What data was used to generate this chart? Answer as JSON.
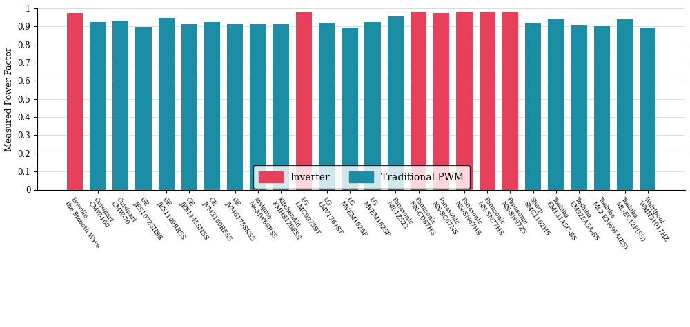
{
  "labels": [
    "Breville\nthe Smooth Wave",
    "Cuisinart\nCMW-100",
    "Cuisinart\nCMW-70",
    "GE\nJES1072SHSS",
    "GE\nJES1109RRSS",
    "GE\nJES1145SHSS",
    "GE\nJVM3160RFSS",
    "GE\nJVM6175SKSS",
    "Insignia\nNs-MW69BSS",
    "KitchenAid\nKMHS120ESS",
    "LG\nLMC0975ST",
    "LG\nLMV1764ST",
    "LG\nMVEM1825F",
    "LG\nMVEM1825F",
    "Panasonic\nNE-1Z523",
    "Panasonic\nNN-CD87HS",
    "Panasonic\nNN-SC67NS",
    "Panasonic\nNN-SN67HS",
    "Panasonic\nNN-SN77HS",
    "Panasonic\nNN-SN97ZS",
    "Sharp\nSMC1162HS",
    "Toshiba\nEM131A5C-BS",
    "Toshiba\nEM925A5A-BS",
    "Toshiba\nML2-EM69PA(BS)",
    "Toshiba\nML-EC12P(SS)",
    "Whirlpool\nWMH31017HZ"
  ],
  "values": [
    0.975,
    0.925,
    0.93,
    0.899,
    0.947,
    0.912,
    0.923,
    0.912,
    0.911,
    0.913,
    0.981,
    0.922,
    0.893,
    0.923,
    0.957,
    0.977,
    0.975,
    0.978,
    0.977,
    0.978,
    0.921,
    0.94,
    0.906,
    0.9,
    0.94,
    0.895
  ],
  "is_inverter": [
    true,
    false,
    false,
    false,
    false,
    false,
    false,
    false,
    false,
    false,
    true,
    false,
    false,
    false,
    false,
    true,
    true,
    true,
    true,
    true,
    false,
    false,
    false,
    false,
    false,
    false
  ],
  "inverter_color": "#E8405A",
  "pwm_color": "#1B8EA6",
  "ylabel": "Measured Power Factor",
  "ylim": [
    0,
    1.0
  ],
  "yticks": [
    0,
    0.1,
    0.2,
    0.3,
    0.4,
    0.5,
    0.6,
    0.7,
    0.8,
    0.9,
    1
  ],
  "legend_inverter": "Inverter",
  "legend_pwm": "Traditional PWM",
  "background_color": "#ffffff",
  "label_rotation": -55,
  "tick_fontsize": 6.5,
  "ylabel_fontsize": 9
}
